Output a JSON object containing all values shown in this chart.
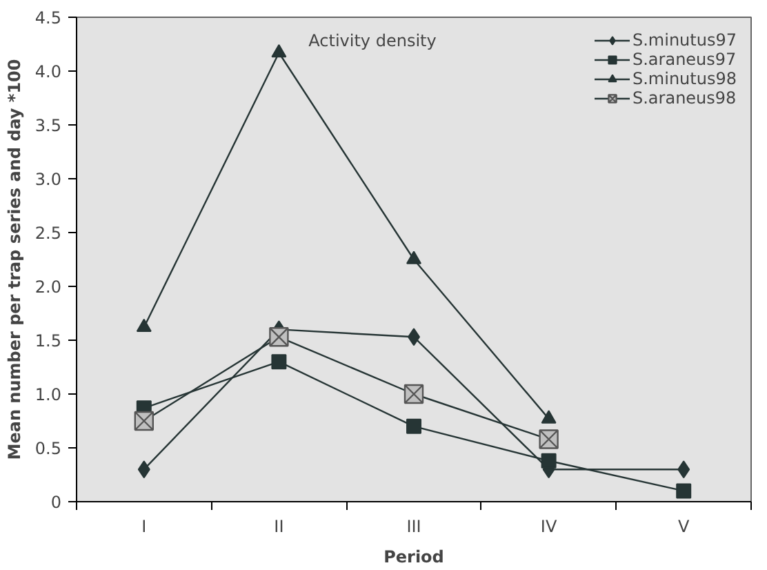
{
  "chart_data": {
    "type": "line",
    "title": "Activity density",
    "xlabel": "Period",
    "ylabel": "Mean number per trap series and day *100",
    "categories": [
      "I",
      "II",
      "III",
      "IV",
      "V"
    ],
    "series": [
      {
        "name": "S.minutus97",
        "color": "#263535",
        "marker": "diamond",
        "values": [
          0.3,
          1.6,
          1.53,
          0.3,
          0.3
        ]
      },
      {
        "name": "S.araneus97",
        "color": "#263535",
        "marker": "square",
        "values": [
          0.87,
          1.3,
          0.7,
          0.38,
          0.1
        ]
      },
      {
        "name": "S.minutus98",
        "color": "#263535",
        "marker": "triangle",
        "values": [
          1.62,
          4.17,
          2.25,
          0.77,
          null
        ]
      },
      {
        "name": "S.araneus98",
        "color": "#263535",
        "marker": "cross",
        "values": [
          0.75,
          1.53,
          1.0,
          0.58,
          null
        ]
      }
    ],
    "ylim": [
      0,
      4.5
    ],
    "yticks": [
      0,
      0.5,
      {
        "value": 1,
        "label": "1.0"
      },
      1.5,
      {
        "value": 2,
        "label": "2.0"
      },
      2.5,
      {
        "value": 3,
        "label": "3.0"
      },
      3.5,
      {
        "value": 4,
        "label": "4.0"
      },
      4.5
    ],
    "grid": false,
    "legend": "top right",
    "line_style": "solid"
  }
}
